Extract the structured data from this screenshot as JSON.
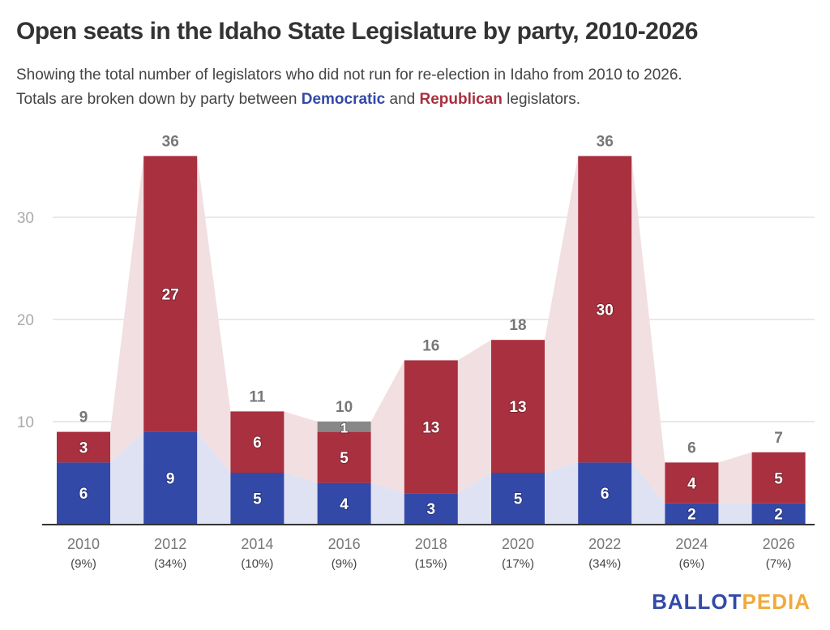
{
  "header": {
    "title": "Open seats in the Idaho State Legislature by party, 2010-2026",
    "subtitle_line1": "Showing the total number of legislators who did not run for re-election in Idaho from 2010 to 2026.",
    "subtitle_line2_pre": "Totals are broken down by party between ",
    "subtitle_dem": "Democratic",
    "subtitle_mid": " and ",
    "subtitle_rep": "Republican",
    "subtitle_post": " legislators."
  },
  "logo": {
    "part1": "BALLOT",
    "part2": "PEDIA"
  },
  "colors": {
    "democratic": "#3349a8",
    "republican": "#a9303f",
    "other": "#888888",
    "dem_area": "#dfe2f2",
    "rep_area": "#f2dfe1"
  },
  "chart_data": {
    "type": "bar",
    "stacked": true,
    "title": "Open seats in the Idaho State Legislature by party, 2010-2026",
    "categories": [
      "2010",
      "2012",
      "2014",
      "2016",
      "2018",
      "2020",
      "2022",
      "2024",
      "2026"
    ],
    "category_sublabels": [
      "(9%)",
      "(34%)",
      "(10%)",
      "(9%)",
      "(15%)",
      "(17%)",
      "(34%)",
      "(6%)",
      "(7%)"
    ],
    "series": [
      {
        "name": "Democratic",
        "values": [
          6,
          9,
          5,
          4,
          3,
          5,
          6,
          2,
          2
        ]
      },
      {
        "name": "Republican",
        "values": [
          3,
          27,
          6,
          5,
          13,
          13,
          30,
          4,
          5
        ]
      },
      {
        "name": "Other",
        "values": [
          0,
          0,
          0,
          1,
          0,
          0,
          0,
          0,
          0
        ]
      }
    ],
    "totals": [
      9,
      36,
      11,
      10,
      16,
      18,
      36,
      6,
      7
    ],
    "yticks": [
      10,
      20,
      30
    ],
    "ylim": [
      0,
      36
    ],
    "xlabel": "",
    "ylabel": "",
    "grid": true,
    "legend": "none"
  }
}
